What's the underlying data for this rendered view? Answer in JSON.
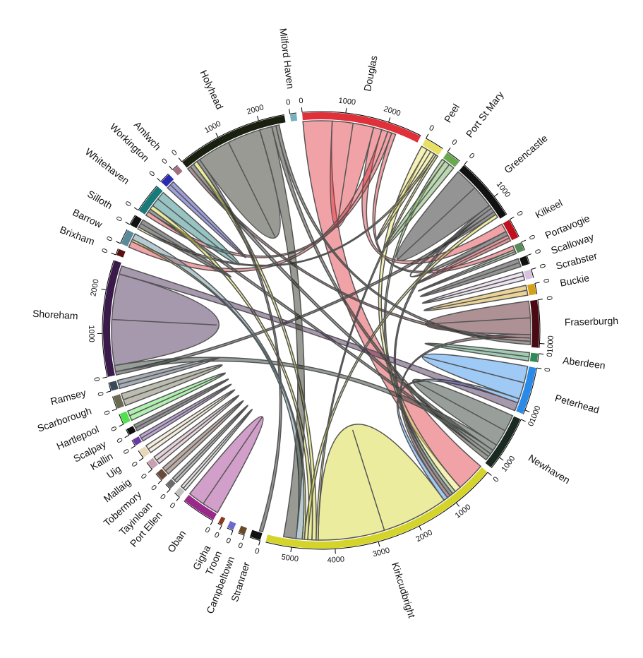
{
  "chart_data": {
    "type": "chord",
    "sectors": [
      {
        "name": "Douglas",
        "color": "#e0303a",
        "value": 2800,
        "ticks": [
          0,
          1000,
          2000
        ]
      },
      {
        "name": "Peel",
        "color": "#e8e060",
        "value": 450,
        "ticks": [
          0
        ]
      },
      {
        "name": "Port St Mary",
        "color": "#6aa84f",
        "value": 350,
        "ticks": [
          0
        ]
      },
      {
        "name": "Greencastle",
        "color": "#111111",
        "value": 1500,
        "ticks": [
          0,
          1000
        ]
      },
      {
        "name": "Kilkeel",
        "color": "#c0101e",
        "value": 450,
        "ticks": [
          0
        ]
      },
      {
        "name": "Portavogie",
        "color": "#5a8a5a",
        "value": 200,
        "ticks": [
          0
        ]
      },
      {
        "name": "Scalloway",
        "color": "#111111",
        "value": 200,
        "ticks": [
          0
        ]
      },
      {
        "name": "Scrabster",
        "color": "#d8c0e0",
        "value": 200,
        "ticks": [
          0
        ]
      },
      {
        "name": "Buckie",
        "color": "#d4a017",
        "value": 250,
        "ticks": [
          0
        ]
      },
      {
        "name": "Fraserburgh",
        "color": "#4a0a14",
        "value": 1100,
        "ticks": [
          0,
          1000
        ]
      },
      {
        "name": "Aberdeen",
        "color": "#2e8b57",
        "value": 200,
        "ticks": [
          0
        ]
      },
      {
        "name": "Peterhead",
        "color": "#2a8ae8",
        "value": 1100,
        "ticks": [
          0,
          1000
        ]
      },
      {
        "name": "Newhaven",
        "color": "#1a2a20",
        "value": 1300,
        "ticks": [
          0,
          1000
        ]
      },
      {
        "name": "Kirkcudbright",
        "color": "#d4d42a",
        "value": 5600,
        "ticks": [
          0,
          1000,
          2000,
          3000,
          4000,
          5000
        ]
      },
      {
        "name": "Stranraer",
        "color": "#111111",
        "value": 250,
        "ticks": [
          0
        ]
      },
      {
        "name": "Campbeltown",
        "color": "#6a4a2a",
        "value": 150,
        "ticks": [
          0
        ]
      },
      {
        "name": "Troon",
        "color": "#6a6ad0",
        "value": 150,
        "ticks": [
          0
        ]
      },
      {
        "name": "Gigha",
        "color": "#8a3a1a",
        "value": 100,
        "ticks": [
          0
        ]
      },
      {
        "name": "Oban",
        "color": "#9a2a8a",
        "value": 800,
        "ticks": [
          0
        ]
      },
      {
        "name": "Port Ellen",
        "color": "#c0c0c0",
        "value": 150,
        "ticks": [
          0
        ]
      },
      {
        "name": "Tayinloan",
        "color": "#6a6a6a",
        "value": 150,
        "ticks": [
          0
        ]
      },
      {
        "name": "Tobermory",
        "color": "#6a4a3a",
        "value": 200,
        "ticks": [
          0
        ]
      },
      {
        "name": "Mallaig",
        "color": "#c8a0b0",
        "value": 200,
        "ticks": [
          0
        ]
      },
      {
        "name": "Uig",
        "color": "#e8d8b8",
        "value": 200,
        "ticks": [
          0
        ]
      },
      {
        "name": "Kallin",
        "color": "#6a3aa0",
        "value": 150,
        "ticks": [
          0
        ]
      },
      {
        "name": "Scalpay",
        "color": "#111111",
        "value": 150,
        "ticks": [
          0
        ]
      },
      {
        "name": "Hartlepool",
        "color": "#50e050",
        "value": 250,
        "ticks": [
          0
        ]
      },
      {
        "name": "Scarborough",
        "color": "#6a6a50",
        "value": 300,
        "ticks": [
          0
        ]
      },
      {
        "name": "Ramsey",
        "color": "#3a4a5a",
        "value": 200,
        "ticks": [
          0
        ]
      },
      {
        "name": "Shoreham",
        "color": "#3a1a4a",
        "value": 2700,
        "ticks": [
          0,
          1000,
          2000
        ]
      },
      {
        "name": "Brixham",
        "color": "#5a1010",
        "value": 150,
        "ticks": [
          0
        ]
      },
      {
        "name": "Barrow",
        "color": "#5a8a9a",
        "value": 350,
        "ticks": [
          0
        ]
      },
      {
        "name": "Silloth",
        "color": "#111111",
        "value": 250,
        "ticks": [
          0
        ]
      },
      {
        "name": "Whitehaven",
        "color": "#1a7a7a",
        "value": 700,
        "ticks": [
          0
        ]
      },
      {
        "name": "Workington",
        "color": "#2a2ab0",
        "value": 250,
        "ticks": [
          0
        ]
      },
      {
        "name": "Amlwch",
        "color": "#a07080",
        "value": 150,
        "ticks": [
          0
        ]
      },
      {
        "name": "Holyhead",
        "color": "#1a2010",
        "value": 2600,
        "ticks": [
          0,
          1000,
          2000
        ]
      },
      {
        "name": "Milford Haven",
        "color": "#7ab0c0",
        "value": 150,
        "ticks": [
          0
        ]
      }
    ],
    "links": [
      {
        "from": 0,
        "to": 13,
        "value": 700
      },
      {
        "from": 0,
        "to": 0,
        "value": 500
      },
      {
        "from": 0,
        "to": 4,
        "value": 200
      },
      {
        "from": 0,
        "to": 31,
        "value": 150
      },
      {
        "from": 0,
        "to": 33,
        "value": 100
      },
      {
        "from": 0,
        "to": 5,
        "value": 100
      },
      {
        "from": 1,
        "to": 13,
        "value": 150
      },
      {
        "from": 1,
        "to": 1,
        "value": 100
      },
      {
        "from": 1,
        "to": 32,
        "value": 50
      },
      {
        "from": 2,
        "to": 13,
        "value": 80
      },
      {
        "from": 2,
        "to": 2,
        "value": 130
      },
      {
        "from": 3,
        "to": 3,
        "value": 550
      },
      {
        "from": 3,
        "to": 13,
        "value": 80
      },
      {
        "from": 3,
        "to": 4,
        "value": 100
      },
      {
        "from": 3,
        "to": 29,
        "value": 80
      },
      {
        "from": 4,
        "to": 4,
        "value": 75
      },
      {
        "from": 5,
        "to": 5,
        "value": 50
      },
      {
        "from": 6,
        "to": 6,
        "value": 100
      },
      {
        "from": 7,
        "to": 7,
        "value": 100
      },
      {
        "from": 8,
        "to": 8,
        "value": 120
      },
      {
        "from": 9,
        "to": 9,
        "value": 400
      },
      {
        "from": 9,
        "to": 13,
        "value": 80
      },
      {
        "from": 9,
        "to": 36,
        "value": 80
      },
      {
        "from": 10,
        "to": 10,
        "value": 100
      },
      {
        "from": 11,
        "to": 11,
        "value": 400
      },
      {
        "from": 11,
        "to": 13,
        "value": 100
      },
      {
        "from": 12,
        "to": 12,
        "value": 400
      },
      {
        "from": 12,
        "to": 29,
        "value": 150
      },
      {
        "from": 12,
        "to": 36,
        "value": 100
      },
      {
        "from": 12,
        "to": 33,
        "value": 80
      },
      {
        "from": 13,
        "to": 13,
        "value": 1600
      },
      {
        "from": 13,
        "to": 1,
        "value": 50
      },
      {
        "from": 13,
        "to": 36,
        "value": 100
      },
      {
        "from": 13,
        "to": 33,
        "value": 100
      },
      {
        "from": 13,
        "to": 3,
        "value": 80
      },
      {
        "from": 13,
        "to": 31,
        "value": 50
      },
      {
        "from": 14,
        "to": 36,
        "value": 80
      },
      {
        "from": 18,
        "to": 18,
        "value": 400
      },
      {
        "from": 19,
        "to": 19,
        "value": 70
      },
      {
        "from": 20,
        "to": 20,
        "value": 70
      },
      {
        "from": 21,
        "to": 21,
        "value": 100
      },
      {
        "from": 22,
        "to": 22,
        "value": 100
      },
      {
        "from": 23,
        "to": 23,
        "value": 100
      },
      {
        "from": 24,
        "to": 24,
        "value": 80
      },
      {
        "from": 25,
        "to": 25,
        "value": 80
      },
      {
        "from": 26,
        "to": 26,
        "value": 120
      },
      {
        "from": 27,
        "to": 27,
        "value": 150
      },
      {
        "from": 28,
        "to": 28,
        "value": 100
      },
      {
        "from": 29,
        "to": 29,
        "value": 1100
      },
      {
        "from": 29,
        "to": 11,
        "value": 200
      },
      {
        "from": 31,
        "to": 13,
        "value": 150
      },
      {
        "from": 32,
        "to": 32,
        "value": 100
      },
      {
        "from": 33,
        "to": 33,
        "value": 200
      },
      {
        "from": 34,
        "to": 34,
        "value": 100
      },
      {
        "from": 36,
        "to": 36,
        "value": 800
      },
      {
        "from": 36,
        "to": 13,
        "value": 300
      },
      {
        "from": 36,
        "to": 12,
        "value": 100
      },
      {
        "from": 36,
        "to": 9,
        "value": 80
      }
    ]
  }
}
